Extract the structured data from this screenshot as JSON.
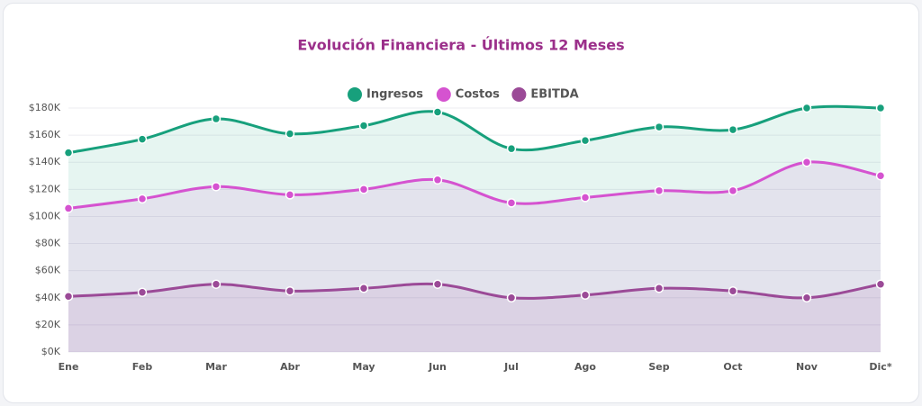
{
  "chart_data": {
    "type": "line",
    "title": "Evolución Financiera - Últimos 12 Meses",
    "categories": [
      "Ene",
      "Feb",
      "Mar",
      "Abr",
      "May",
      "Jun",
      "Jul",
      "Ago",
      "Sep",
      "Oct",
      "Nov",
      "Dic*"
    ],
    "series": [
      {
        "name": "Ingresos",
        "color": "#17a07c",
        "values": [
          147000,
          157000,
          172000,
          161000,
          167000,
          177000,
          150000,
          156000,
          166000,
          164000,
          180000,
          180000
        ]
      },
      {
        "name": "Costos",
        "color": "#d553d0",
        "values": [
          106000,
          113000,
          122000,
          116000,
          120000,
          127000,
          110000,
          114000,
          119000,
          119000,
          140000,
          130000
        ]
      },
      {
        "name": "EBITDA",
        "color": "#9b4a97",
        "values": [
          41000,
          44000,
          50000,
          45000,
          47000,
          50000,
          40000,
          42000,
          47000,
          45000,
          40000,
          50000
        ]
      }
    ],
    "ylim": [
      0,
      180000
    ],
    "yticks": [
      {
        "value": 0,
        "label": "$0K"
      },
      {
        "value": 20000,
        "label": "$20K"
      },
      {
        "value": 40000,
        "label": "$40K"
      },
      {
        "value": 60000,
        "label": "$60K"
      },
      {
        "value": 80000,
        "label": "$80K"
      },
      {
        "value": 100000,
        "label": "$100K"
      },
      {
        "value": 120000,
        "label": "$120K"
      },
      {
        "value": 140000,
        "label": "$140K"
      },
      {
        "value": 160000,
        "label": "$160K"
      },
      {
        "value": 180000,
        "label": "$180K"
      }
    ],
    "grid": true,
    "legend": "top"
  }
}
